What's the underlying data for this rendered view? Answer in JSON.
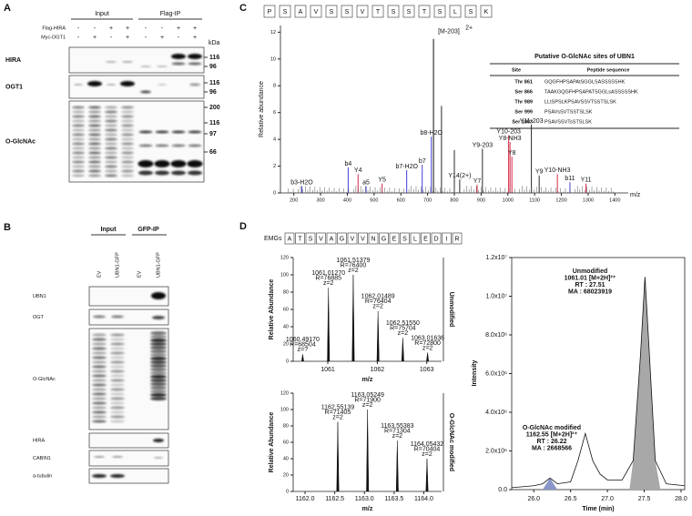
{
  "A": {
    "label": "A",
    "groups": [
      "Input",
      "Flag-IP"
    ],
    "conditions": [
      {
        "name": "Flag-HIRA",
        "signs": [
          "-",
          "-",
          "+",
          "+",
          "-",
          "-",
          "+",
          "+"
        ]
      },
      {
        "name": "Myc-OGT1",
        "signs": [
          "-",
          "+",
          "-",
          "+",
          "-",
          "+",
          "-",
          "+"
        ]
      }
    ],
    "unit": "kDa",
    "blots": [
      {
        "name": "HIRA",
        "markers": [
          116,
          96
        ]
      },
      {
        "name": "OGT1",
        "markers": [
          116,
          96
        ]
      },
      {
        "name": "O-GlcNAc",
        "markers": [
          200,
          116,
          97,
          66
        ]
      }
    ]
  },
  "B": {
    "label": "B",
    "groups": [
      "Input",
      "GFP-IP"
    ],
    "lanes": [
      "EV",
      "UBN1-GFP",
      "EV",
      "UBN1-GFP"
    ],
    "blots": [
      "UBN1",
      "OGT",
      "O-GlcNAc",
      "HIRA",
      "CABIN1",
      "α-tubulin"
    ]
  },
  "C": {
    "label": "C",
    "sequence": [
      "P",
      "S",
      "A",
      "V",
      "S",
      "S",
      "V",
      "T",
      "S",
      "S",
      "T",
      "S",
      "L",
      "S",
      "K"
    ],
    "precursor": {
      "label": "[M-203]",
      "charge": "2+"
    },
    "y_label": "Relative abundance",
    "x_label": "m/z",
    "xlim": [
      150,
      1450
    ],
    "ylim": [
      0,
      12.5
    ],
    "xticks": [
      200,
      300,
      400,
      500,
      600,
      700,
      800,
      900,
      1000,
      1100,
      1200,
      1300,
      1400
    ],
    "yticks": [
      0,
      2,
      4,
      6,
      8,
      10,
      12
    ],
    "precursor_peak": {
      "mz": 722,
      "intensity": 11.5
    },
    "peaks": [
      {
        "mz": 230,
        "intensity": 0.5,
        "label": "b3-H2O",
        "color": "#2b2bd0"
      },
      {
        "mz": 403,
        "intensity": 1.9,
        "label": "b4",
        "color": "#2b2bd0"
      },
      {
        "mz": 440,
        "intensity": 1.4,
        "label": "Y4",
        "color": "#d01030"
      },
      {
        "mz": 470,
        "intensity": 0.5,
        "label": "a5",
        "color": "#2b2bd0"
      },
      {
        "mz": 530,
        "intensity": 0.7,
        "label": "Y5",
        "color": "#d01030"
      },
      {
        "mz": 622,
        "intensity": 1.7,
        "label": "b7-H2O",
        "color": "#2b2bd0"
      },
      {
        "mz": 680,
        "intensity": 2.1,
        "label": "b7",
        "color": "#2b2bd0"
      },
      {
        "mz": 714,
        "intensity": 4.2,
        "label": "b8-H2O",
        "color": "#2b2bd0"
      },
      {
        "mz": 752,
        "intensity": 6.5,
        "color": "#111111"
      },
      {
        "mz": 800,
        "intensity": 3.2,
        "color": "#111111"
      },
      {
        "mz": 820,
        "intensity": 1.0,
        "label": "Y14(2+)",
        "color": "#111111"
      },
      {
        "mz": 885,
        "intensity": 0.6,
        "label": "Y7",
        "color": "#d01030"
      },
      {
        "mz": 905,
        "intensity": 3.3,
        "label": "Y9-203",
        "color": "#111111"
      },
      {
        "mz": 1003,
        "intensity": 4.3,
        "label": "Y10-203",
        "color": "#d01030"
      },
      {
        "mz": 1008,
        "intensity": 3.8,
        "label": "Y8-NH3",
        "color": "#d01030"
      },
      {
        "mz": 1015,
        "intensity": 2.7,
        "label": "Y8",
        "color": "#d01030"
      },
      {
        "mz": 1088,
        "intensity": 5.1,
        "label": "Y11-203",
        "color": "#111111"
      },
      {
        "mz": 1117,
        "intensity": 1.3,
        "label": "Y9",
        "color": "#111111"
      },
      {
        "mz": 1185,
        "intensity": 1.4,
        "label": "Y10-NH3",
        "color": "#d01030"
      },
      {
        "mz": 1232,
        "intensity": 0.8,
        "label": "b11",
        "color": "#2b2bd0"
      },
      {
        "mz": 1292,
        "intensity": 0.7,
        "label": "Y11",
        "color": "#d01030"
      }
    ],
    "table": {
      "title": "Putative O-GlcNAc sites of UBN1",
      "headers": [
        "Site",
        "Peptide sequence"
      ],
      "rows": [
        [
          "Thr 861",
          "GQGFHPSAPAtSGGLSASSSSSHK"
        ],
        [
          "Ser 866",
          "TAAKGQGFHPSAPATSGGLsASSSSSHK"
        ],
        [
          "Thr 989",
          "LLtSPSLKPSAVSSVTSSTSLSK"
        ],
        [
          "Ser 999",
          "PSAVsSVTSSTSLSK"
        ],
        [
          "Ser 1003",
          "PSAVSSVTsSTSLSK"
        ]
      ]
    }
  },
  "D": {
    "label": "D",
    "sequence_prefix": "EMGs",
    "sequence": [
      "A",
      "T",
      "S",
      "V",
      "A",
      "G",
      "V",
      "V",
      "N",
      "G",
      "E",
      "S",
      "L",
      "E",
      "D",
      "I",
      "R"
    ],
    "spectra": [
      {
        "side_label": "Unmodified",
        "x_label": "m/z",
        "y_label": "Relative Abundance",
        "xlim": [
          1060.3,
          1063.3
        ],
        "ylim": [
          0,
          120
        ],
        "xticks": [
          1061,
          1062,
          1063
        ],
        "yticks": [
          0,
          20,
          40,
          60,
          80,
          100,
          120
        ],
        "peaks": [
          {
            "mz": 1060.4917,
            "intensity": 8,
            "lines": [
              "1060.49170",
              "R=68504",
              "z=?"
            ]
          },
          {
            "mz": 1061.0127,
            "intensity": 85,
            "lines": [
              "1061.01270",
              "R=76885",
              "z=2"
            ]
          },
          {
            "mz": 1061.51379,
            "intensity": 100,
            "lines": [
              "1061.51379",
              "R=76400",
              "z=2"
            ]
          },
          {
            "mz": 1062.01489,
            "intensity": 58,
            "lines": [
              "1062.01489",
              "R=76404",
              "z=2"
            ]
          },
          {
            "mz": 1062.5155,
            "intensity": 27,
            "lines": [
              "1062.51550",
              "R=75704",
              "z=2"
            ]
          },
          {
            "mz": 1063.01636,
            "intensity": 10,
            "lines": [
              "1063.01636",
              "R=72800",
              "z=2"
            ]
          }
        ]
      },
      {
        "side_label": "O-GlcNAc modified",
        "x_label": "m/z",
        "y_label": "Relative Abundance",
        "xlim": [
          1161.8,
          1164.3
        ],
        "ylim": [
          0,
          120
        ],
        "xticks": [
          {
            "value": 1162,
            "label": "1162.0"
          },
          1162.5,
          {
            "value": 1163,
            "label": "1163.0"
          },
          1163.5,
          {
            "value": 1164,
            "label": "1164.0"
          }
        ],
        "yticks": [
          0,
          20,
          40,
          60,
          80,
          100,
          120
        ],
        "peaks": [
          {
            "mz": 1162.55139,
            "intensity": 85,
            "lines": [
              "1162.55139",
              "R=71405",
              "z=2"
            ]
          },
          {
            "mz": 1163.05249,
            "intensity": 100,
            "lines": [
              "1163.05249",
              "R=71900",
              "z=2"
            ]
          },
          {
            "mz": 1163.55383,
            "intensity": 62,
            "lines": [
              "1163.55383",
              "R=71304",
              "z=2"
            ]
          },
          {
            "mz": 1164.05432,
            "intensity": 40,
            "lines": [
              "1164.05432",
              "R=70404",
              "z=2"
            ]
          }
        ]
      }
    ],
    "chromatogram": {
      "x_label": "Time (min)",
      "y_label": "Intensity",
      "xlim": [
        25.7,
        28.05
      ],
      "ylim": [
        0,
        12000000
      ],
      "xticks": [
        {
          "value": 26,
          "label": "26.0"
        },
        26.5,
        {
          "value": 27,
          "label": "27.0"
        },
        27.5,
        {
          "value": 28,
          "label": "28.0"
        }
      ],
      "yticks": [
        {
          "value": 0,
          "label": "0.0"
        },
        {
          "value": 2000000,
          "label": "2.0x10⁶"
        },
        {
          "value": 4000000,
          "label": "4.0x10⁶"
        },
        {
          "value": 6000000,
          "label": "6.0x10⁶"
        },
        {
          "value": 8000000,
          "label": "8.0x10⁶"
        },
        {
          "value": 10000000,
          "label": "1.0x10⁷"
        },
        {
          "value": 12000000,
          "label": "1.2x10⁷"
        }
      ],
      "trace": {
        "x": [
          25.7,
          26.0,
          26.12,
          26.22,
          26.32,
          26.5,
          26.6,
          26.7,
          26.8,
          26.9,
          27.0,
          27.2,
          27.35,
          27.45,
          27.51,
          27.57,
          27.65,
          27.8,
          28.05
        ],
        "values": [
          100000,
          200000,
          300000,
          600000,
          300000,
          400000,
          1500000,
          2900000,
          1500000,
          800000,
          500000,
          500000,
          1500000,
          7000000,
          11000000,
          7000000,
          1500000,
          300000,
          200000
        ]
      },
      "filled": [
        {
          "x": [
            26.12,
            26.22,
            26.32
          ],
          "values": [
            0,
            600000,
            0
          ]
        },
        {
          "x": [
            27.3,
            27.35,
            27.45,
            27.51,
            27.57,
            27.65,
            27.72
          ],
          "values": [
            0,
            1500000,
            7000000,
            11000000,
            7000000,
            1500000,
            0
          ]
        }
      ],
      "annotations": [
        {
          "lines": [
            "Unmodified",
            "1061.01 [M+2H]²⁺",
            "RT : 27.51",
            "MA : 68023919"
          ]
        },
        {
          "lines": [
            "O-GlcNAc modified",
            "1162.55 [M+2H]²⁺",
            "RT : 26.22",
            "MA : 2668566"
          ]
        }
      ]
    }
  }
}
